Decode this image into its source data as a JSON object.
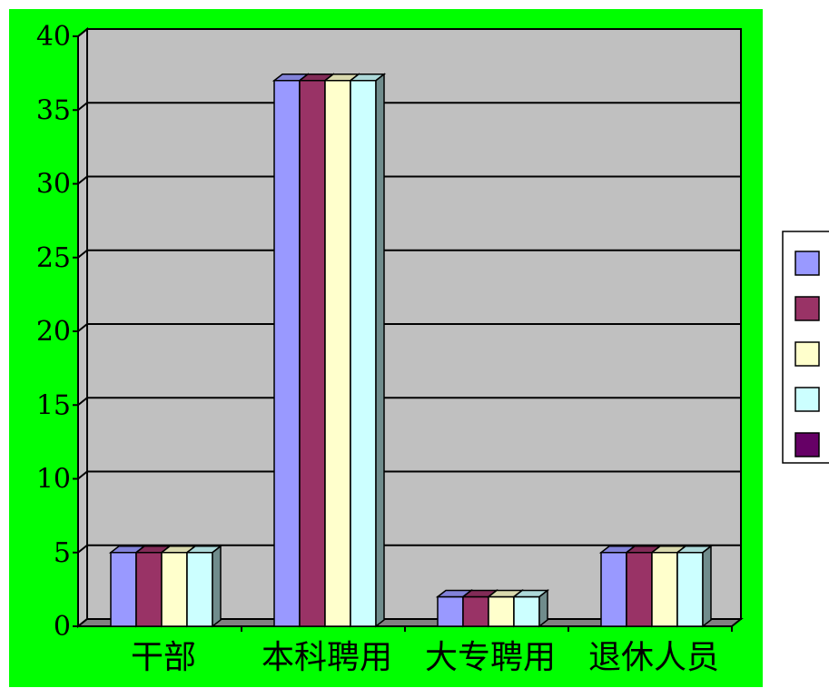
{
  "chart_data": {
    "type": "bar",
    "categories": [
      "干部",
      "本科聘用",
      "大专聘用",
      "退休人员"
    ],
    "series": [
      {
        "values": [
          5,
          37,
          2,
          5
        ],
        "color": "#9999ff"
      },
      {
        "values": [
          5,
          37,
          2,
          5
        ],
        "color": "#993366"
      },
      {
        "values": [
          5,
          37,
          2,
          5
        ],
        "color": "#ffffcc"
      },
      {
        "values": [
          5,
          37,
          2,
          5
        ],
        "color": "#ccffff"
      },
      {
        "values": [
          0,
          0,
          0,
          0
        ],
        "color": "#660066"
      }
    ],
    "ylim": [
      0,
      40
    ],
    "yticks": [
      0,
      5,
      10,
      15,
      20,
      25,
      30,
      35,
      40
    ],
    "grid": true,
    "legend": "right",
    "style": "3d-clustered-columns",
    "colors": {
      "background": "#00ff00",
      "plot_wall": "#c0c0c0",
      "floor": "#808080"
    }
  }
}
